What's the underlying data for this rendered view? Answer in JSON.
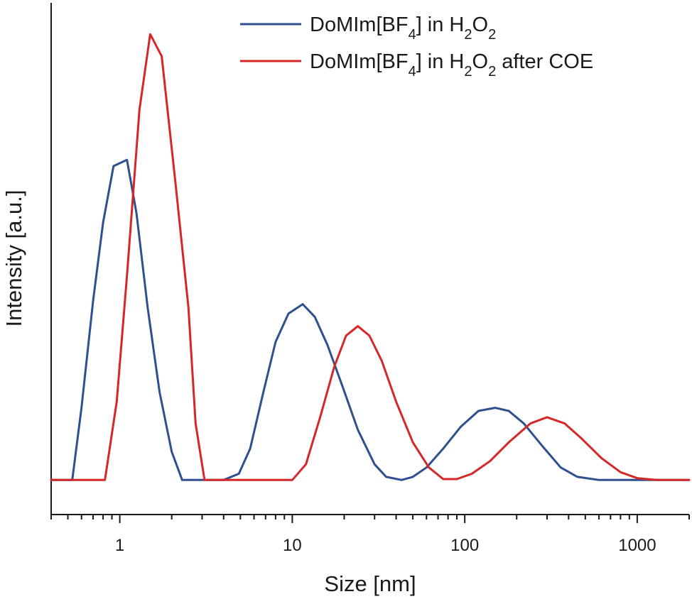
{
  "chart_data": {
    "type": "line",
    "title": "",
    "xlabel": "Size [nm]",
    "ylabel": "Intensity [a.u.]",
    "x_scale": "log",
    "xlim": [
      0.4,
      2000
    ],
    "ylim": [
      -0.11,
      1.52
    ],
    "x_ticks": [
      1,
      10,
      100,
      1000
    ],
    "x_tick_labels": [
      "1",
      "10",
      "100",
      "1000"
    ],
    "y_ticks_shown": false,
    "grid": false,
    "legend_position": "top-right",
    "series": [
      {
        "name": "DoMIm[BF4] in H2O2",
        "legend_parts": {
          "a": "DoMIm[BF",
          "sub1": "4",
          "b": "] in H",
          "sub2": "2",
          "c": "O",
          "sub3": "2",
          "d": ""
        },
        "color": "#2f4f8f",
        "points": [
          [
            0.4,
            0
          ],
          [
            0.53,
            0
          ],
          [
            0.6,
            0.23
          ],
          [
            0.7,
            0.57
          ],
          [
            0.8,
            0.82
          ],
          [
            0.92,
            1.0
          ],
          [
            1.1,
            1.02
          ],
          [
            1.25,
            0.85
          ],
          [
            1.45,
            0.55
          ],
          [
            1.7,
            0.28
          ],
          [
            2.0,
            0.09
          ],
          [
            2.3,
            0
          ],
          [
            3.0,
            0
          ],
          [
            4.0,
            0
          ],
          [
            4.9,
            0.02
          ],
          [
            5.7,
            0.1
          ],
          [
            6.8,
            0.28
          ],
          [
            8.0,
            0.44
          ],
          [
            9.5,
            0.53
          ],
          [
            11.5,
            0.56
          ],
          [
            13.5,
            0.52
          ],
          [
            16.0,
            0.43
          ],
          [
            19.5,
            0.3
          ],
          [
            24.0,
            0.16
          ],
          [
            30.0,
            0.05
          ],
          [
            35.0,
            0.01
          ],
          [
            43.0,
            0
          ],
          [
            50.0,
            0.01
          ],
          [
            60.0,
            0.04
          ],
          [
            75.0,
            0.1
          ],
          [
            95.0,
            0.17
          ],
          [
            120.0,
            0.22
          ],
          [
            150.0,
            0.23
          ],
          [
            180.0,
            0.22
          ],
          [
            220.0,
            0.18
          ],
          [
            280.0,
            0.11
          ],
          [
            360.0,
            0.04
          ],
          [
            450.0,
            0.01
          ],
          [
            600.0,
            0
          ],
          [
            2000.0,
            0
          ]
        ]
      },
      {
        "name": "DoMIm[BF4] in H2O2 after COE",
        "legend_parts": {
          "a": "DoMIm[BF",
          "sub1": "4",
          "b": "] in H",
          "sub2": "2",
          "c": "O",
          "sub3": "2",
          "d": " after COE"
        },
        "color": "#d62728",
        "points": [
          [
            0.4,
            0
          ],
          [
            0.82,
            0
          ],
          [
            0.96,
            0.25
          ],
          [
            1.1,
            0.65
          ],
          [
            1.3,
            1.18
          ],
          [
            1.5,
            1.42
          ],
          [
            1.75,
            1.35
          ],
          [
            2.1,
            0.95
          ],
          [
            2.5,
            0.55
          ],
          [
            2.75,
            0.18
          ],
          [
            3.1,
            0
          ],
          [
            4.0,
            0
          ],
          [
            6.0,
            0
          ],
          [
            8.0,
            0
          ],
          [
            10.0,
            0
          ],
          [
            12.0,
            0.05
          ],
          [
            14.5,
            0.2
          ],
          [
            17.5,
            0.36
          ],
          [
            20.5,
            0.46
          ],
          [
            24.0,
            0.49
          ],
          [
            28.0,
            0.46
          ],
          [
            33.0,
            0.38
          ],
          [
            40.0,
            0.25
          ],
          [
            50.0,
            0.12
          ],
          [
            62.0,
            0.04
          ],
          [
            75.0,
            0.003
          ],
          [
            90.0,
            0.003
          ],
          [
            110.0,
            0.02
          ],
          [
            140.0,
            0.06
          ],
          [
            180.0,
            0.12
          ],
          [
            240.0,
            0.18
          ],
          [
            300.0,
            0.2
          ],
          [
            380.0,
            0.18
          ],
          [
            480.0,
            0.13
          ],
          [
            620.0,
            0.07
          ],
          [
            800.0,
            0.025
          ],
          [
            1000.0,
            0.006
          ],
          [
            1300.0,
            0
          ],
          [
            2000.0,
            0
          ]
        ]
      }
    ]
  }
}
